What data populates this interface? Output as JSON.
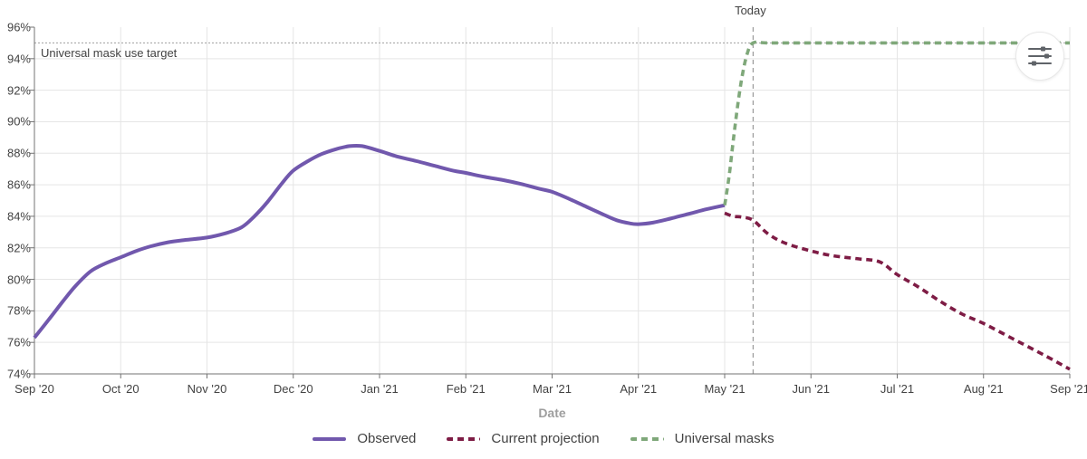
{
  "chart": {
    "today_label": "Today",
    "target_label": "Universal mask use target",
    "menu_icon": "sliders-icon"
  },
  "colors": {
    "observed": "#7158ad",
    "current_projection": "#7e1c45",
    "universal_masks": "#7fa87a",
    "grid": "#e5e5e5",
    "axis": "#737373",
    "tick_text": "#424242",
    "axis_title_text": "#9e9e9e",
    "reference_lines": "#9e9e9e"
  },
  "chart_data": {
    "type": "line",
    "title": "",
    "xlabel": "Date",
    "ylabel": "",
    "ylim": [
      74,
      96
    ],
    "y_tick_step": 2,
    "y_tick_labels": [
      "74%",
      "76%",
      "78%",
      "80%",
      "82%",
      "84%",
      "86%",
      "88%",
      "90%",
      "92%",
      "94%",
      "96%"
    ],
    "x_tick_labels": [
      "Sep '20",
      "Oct '20",
      "Nov '20",
      "Dec '20",
      "Jan '21",
      "Feb '21",
      "Mar '21",
      "Apr '21",
      "May '21",
      "Jun '21",
      "Jul '21",
      "Aug '21",
      "Sep '21"
    ],
    "x_unit": "months since Sep 2020",
    "grid": true,
    "legend_position": "bottom",
    "target_line": {
      "value": 95,
      "label": "Universal mask use target",
      "style": "dotted"
    },
    "today_line": {
      "x": 8.33,
      "label": "Today",
      "style": "dashed"
    },
    "series": [
      {
        "name": "Observed",
        "color": "#7158ad",
        "dash": "solid",
        "points": [
          [
            0,
            76.3
          ],
          [
            0.16,
            77.4
          ],
          [
            0.33,
            78.6
          ],
          [
            0.48,
            79.6
          ],
          [
            0.65,
            80.5
          ],
          [
            0.82,
            81.0
          ],
          [
            1,
            81.4
          ],
          [
            1.18,
            81.8
          ],
          [
            1.35,
            82.1
          ],
          [
            1.55,
            82.35
          ],
          [
            1.75,
            82.5
          ],
          [
            2,
            82.65
          ],
          [
            2.2,
            82.9
          ],
          [
            2.4,
            83.3
          ],
          [
            2.55,
            84.0
          ],
          [
            2.7,
            84.9
          ],
          [
            2.87,
            86.1
          ],
          [
            3,
            86.9
          ],
          [
            3.17,
            87.5
          ],
          [
            3.33,
            87.95
          ],
          [
            3.49,
            88.25
          ],
          [
            3.65,
            88.45
          ],
          [
            3.8,
            88.45
          ],
          [
            4,
            88.15
          ],
          [
            4.2,
            87.8
          ],
          [
            4.43,
            87.5
          ],
          [
            4.64,
            87.2
          ],
          [
            4.85,
            86.9
          ],
          [
            5,
            86.75
          ],
          [
            5.22,
            86.5
          ],
          [
            5.43,
            86.3
          ],
          [
            5.64,
            86.05
          ],
          [
            5.85,
            85.75
          ],
          [
            6,
            85.55
          ],
          [
            6.2,
            85.1
          ],
          [
            6.4,
            84.6
          ],
          [
            6.6,
            84.1
          ],
          [
            6.75,
            83.75
          ],
          [
            6.9,
            83.55
          ],
          [
            7,
            83.5
          ],
          [
            7.17,
            83.6
          ],
          [
            7.37,
            83.85
          ],
          [
            7.58,
            84.15
          ],
          [
            7.79,
            84.45
          ],
          [
            8,
            84.7
          ]
        ]
      },
      {
        "name": "Current projection",
        "color": "#7e1c45",
        "dash": "dashed",
        "points": [
          [
            8,
            84.2
          ],
          [
            8.1,
            84.0
          ],
          [
            8.2,
            83.95
          ],
          [
            8.33,
            83.75
          ],
          [
            8.5,
            82.9
          ],
          [
            8.7,
            82.3
          ],
          [
            9,
            81.8
          ],
          [
            9.25,
            81.5
          ],
          [
            9.55,
            81.3
          ],
          [
            9.8,
            81.1
          ],
          [
            10,
            80.3
          ],
          [
            10.25,
            79.5
          ],
          [
            10.5,
            78.6
          ],
          [
            10.75,
            77.8
          ],
          [
            11,
            77.2
          ],
          [
            11.35,
            76.2
          ],
          [
            11.7,
            75.2
          ],
          [
            12,
            74.3
          ]
        ]
      },
      {
        "name": "Universal masks",
        "color": "#7fa87a",
        "dash": "dashed",
        "points": [
          [
            8,
            84.7
          ],
          [
            8.05,
            86.5
          ],
          [
            8.1,
            88.8
          ],
          [
            8.15,
            91.0
          ],
          [
            8.2,
            92.8
          ],
          [
            8.26,
            94.3
          ],
          [
            8.33,
            95
          ],
          [
            8.5,
            95
          ],
          [
            9,
            95
          ],
          [
            12,
            95
          ]
        ]
      }
    ]
  }
}
